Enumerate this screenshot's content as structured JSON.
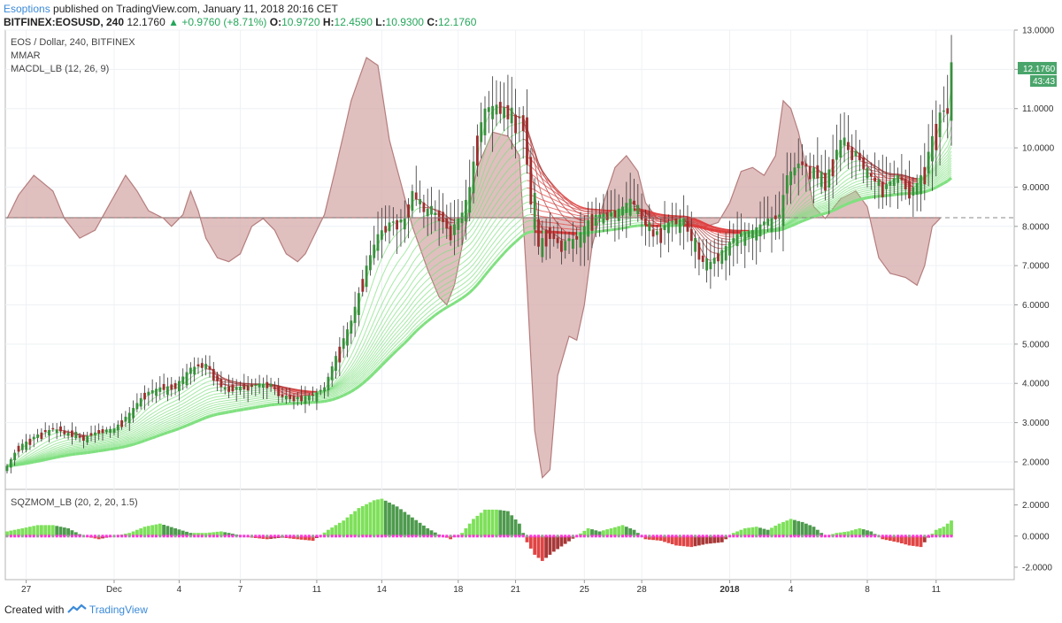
{
  "header": {
    "author": "Esoptions",
    "published": "published on TradingView.com, January 11, 2018 20:16 CET",
    "symbol": "BITFINEX:EOSUSD, 240",
    "last": "12.1760",
    "change": "+0.9760 (+8.71%)",
    "o_label": "O:",
    "o_value": "10.9720",
    "h_label": "H:",
    "h_value": "12.4590",
    "l_label": "L:",
    "l_value": "10.9300",
    "c_label": "C:",
    "c_value": "12.1760"
  },
  "legend": {
    "line1": "EOS / Dollar, 240, BITFINEX",
    "line2": "MMAR",
    "line3": "MACDL_LB (12, 26, 9)",
    "sub": "SQZMOM_LB (20, 2, 20, 1.5)"
  },
  "price_badge": {
    "price": "12.1760",
    "countdown": "43:43"
  },
  "footer": {
    "created": "Created with",
    "brand": "TradingView"
  },
  "colors": {
    "up": "#3a8f3e",
    "down": "#9b2f2f",
    "ribbon_green": "#7fe07f",
    "ribbon_red": "#e03c3c",
    "macd_fill": "#d5a9a9",
    "macd_line": "#b57d7d",
    "sqz_up_strong": "#7ee05a",
    "sqz_up_weak": "#4e9a4e",
    "sqz_down_strong": "#e04545",
    "sqz_down_weak": "#a83838",
    "zero_dots": "#ff33dd",
    "badge": "#4aa56b"
  },
  "chart_data": {
    "type": "line",
    "price_axis": {
      "ylim": [
        1.3,
        13.0
      ],
      "ticks": [
        "13.0000",
        "12.0000",
        "11.0000",
        "10.0000",
        "9.0000",
        "8.0000",
        "7.0000",
        "6.0000",
        "5.0000",
        "4.0000",
        "3.0000",
        "2.0000"
      ]
    },
    "osc_axis": {
      "ylim": [
        -2.8,
        3.0
      ],
      "ticks": [
        "2.0000",
        "0.0000",
        "-2.0000"
      ]
    },
    "x_ticks": [
      "27",
      "Dec",
      "4",
      "7",
      "11",
      "14",
      "18",
      "21",
      "25",
      "28",
      "2018",
      "4",
      "8",
      "11"
    ],
    "x_tick_index": [
      5,
      28,
      45,
      61,
      81,
      98,
      118,
      133,
      151,
      166,
      189,
      205,
      225,
      243
    ],
    "reference_level": 8.22,
    "price_anchors": [
      [
        0,
        1.9
      ],
      [
        3,
        2.4
      ],
      [
        8,
        2.7
      ],
      [
        12,
        2.85
      ],
      [
        16,
        2.75
      ],
      [
        20,
        2.6
      ],
      [
        24,
        2.8
      ],
      [
        28,
        2.85
      ],
      [
        32,
        3.25
      ],
      [
        36,
        3.75
      ],
      [
        40,
        3.9
      ],
      [
        44,
        3.95
      ],
      [
        48,
        4.4
      ],
      [
        52,
        4.5
      ],
      [
        56,
        3.9
      ],
      [
        60,
        3.9
      ],
      [
        64,
        3.95
      ],
      [
        68,
        4.0
      ],
      [
        72,
        3.7
      ],
      [
        76,
        3.65
      ],
      [
        80,
        3.7
      ],
      [
        83,
        3.9
      ],
      [
        86,
        4.7
      ],
      [
        90,
        5.6
      ],
      [
        94,
        7.0
      ],
      [
        97,
        7.8
      ],
      [
        100,
        8.1
      ],
      [
        104,
        8.2
      ],
      [
        106,
        8.9
      ],
      [
        109,
        8.5
      ],
      [
        113,
        8.3
      ],
      [
        116,
        7.9
      ],
      [
        119,
        8.35
      ],
      [
        121,
        9.0
      ],
      [
        123,
        10.3
      ],
      [
        125,
        11.0
      ],
      [
        128,
        11.1
      ],
      [
        131,
        11.0
      ],
      [
        133,
        10.7
      ],
      [
        135,
        10.8
      ],
      [
        137,
        8.8
      ],
      [
        139,
        7.5
      ],
      [
        141,
        7.9
      ],
      [
        145,
        7.6
      ],
      [
        149,
        7.7
      ],
      [
        153,
        8.3
      ],
      [
        157,
        8.3
      ],
      [
        161,
        8.5
      ],
      [
        163,
        8.7
      ],
      [
        165,
        8.4
      ],
      [
        169,
        7.8
      ],
      [
        173,
        8.1
      ],
      [
        177,
        8.2
      ],
      [
        181,
        7.3
      ],
      [
        183,
        7.0
      ],
      [
        187,
        7.4
      ],
      [
        191,
        7.8
      ],
      [
        195,
        7.9
      ],
      [
        199,
        8.2
      ],
      [
        202,
        8.3
      ],
      [
        204,
        9.3
      ],
      [
        207,
        9.6
      ],
      [
        211,
        9.5
      ],
      [
        214,
        9.2
      ],
      [
        218,
        10.2
      ],
      [
        221,
        10.0
      ],
      [
        225,
        9.4
      ],
      [
        229,
        9.0
      ],
      [
        233,
        9.3
      ],
      [
        237,
        8.9
      ],
      [
        240,
        9.5
      ],
      [
        242,
        10.3
      ],
      [
        244,
        10.9
      ],
      [
        246,
        11.0
      ],
      [
        247,
        12.18
      ]
    ],
    "macd_anchors": [
      [
        0,
        8.2
      ],
      [
        3,
        8.8
      ],
      [
        7,
        9.3
      ],
      [
        12,
        8.9
      ],
      [
        15,
        8.2
      ],
      [
        19,
        7.7
      ],
      [
        23,
        7.9
      ],
      [
        27,
        8.6
      ],
      [
        31,
        9.3
      ],
      [
        34,
        8.9
      ],
      [
        37,
        8.4
      ],
      [
        41,
        8.2
      ],
      [
        43,
        8.0
      ],
      [
        46,
        8.3
      ],
      [
        48,
        8.9
      ],
      [
        50,
        8.4
      ],
      [
        52,
        7.7
      ],
      [
        55,
        7.2
      ],
      [
        58,
        7.1
      ],
      [
        61,
        7.3
      ],
      [
        64,
        8.0
      ],
      [
        67,
        8.2
      ],
      [
        70,
        7.9
      ],
      [
        73,
        7.3
      ],
      [
        76,
        7.1
      ],
      [
        78,
        7.3
      ],
      [
        81,
        7.9
      ],
      [
        83,
        8.3
      ],
      [
        86,
        9.5
      ],
      [
        90,
        11.2
      ],
      [
        94,
        12.3
      ],
      [
        97,
        12.1
      ],
      [
        100,
        10.2
      ],
      [
        103,
        9.1
      ],
      [
        106,
        8.0
      ],
      [
        110,
        6.9
      ],
      [
        113,
        6.2
      ],
      [
        115,
        6.0
      ],
      [
        117,
        6.5
      ],
      [
        120,
        8.0
      ],
      [
        123,
        9.5
      ],
      [
        127,
        10.4
      ],
      [
        131,
        10.3
      ],
      [
        134,
        9.8
      ],
      [
        136,
        6.5
      ],
      [
        138,
        2.8
      ],
      [
        140,
        1.6
      ],
      [
        142,
        1.8
      ],
      [
        144,
        4.2
      ],
      [
        147,
        5.2
      ],
      [
        149,
        5.1
      ],
      [
        151,
        6.0
      ],
      [
        153,
        7.5
      ],
      [
        156,
        8.6
      ],
      [
        159,
        9.5
      ],
      [
        162,
        9.8
      ],
      [
        165,
        9.4
      ],
      [
        167,
        8.6
      ],
      [
        170,
        8.2
      ],
      [
        173,
        8.1
      ],
      [
        177,
        8.0
      ],
      [
        180,
        8.0
      ],
      [
        183,
        8.0
      ],
      [
        186,
        8.1
      ],
      [
        189,
        8.6
      ],
      [
        192,
        9.4
      ],
      [
        195,
        9.5
      ],
      [
        198,
        9.3
      ],
      [
        201,
        9.8
      ],
      [
        203,
        11.2
      ],
      [
        205,
        11.0
      ],
      [
        207,
        10.4
      ],
      [
        209,
        9.5
      ],
      [
        211,
        8.5
      ],
      [
        214,
        8.2
      ],
      [
        218,
        8.7
      ],
      [
        222,
        8.9
      ],
      [
        225,
        8.5
      ],
      [
        228,
        7.2
      ],
      [
        231,
        6.8
      ],
      [
        235,
        6.7
      ],
      [
        238,
        6.5
      ],
      [
        240,
        7.0
      ],
      [
        242,
        8.0
      ],
      [
        244,
        8.2
      ]
    ],
    "sqz_anchors": [
      [
        0,
        0.3
      ],
      [
        4,
        0.5
      ],
      [
        8,
        0.7
      ],
      [
        12,
        0.7
      ],
      [
        16,
        0.5
      ],
      [
        20,
        0.0
      ],
      [
        24,
        -0.2
      ],
      [
        28,
        0.0
      ],
      [
        32,
        0.2
      ],
      [
        36,
        0.6
      ],
      [
        40,
        0.8
      ],
      [
        44,
        0.5
      ],
      [
        48,
        0.2
      ],
      [
        52,
        0.2
      ],
      [
        56,
        0.3
      ],
      [
        60,
        0.1
      ],
      [
        64,
        -0.1
      ],
      [
        68,
        -0.2
      ],
      [
        72,
        -0.1
      ],
      [
        76,
        -0.2
      ],
      [
        80,
        -0.3
      ],
      [
        84,
        0.4
      ],
      [
        88,
        1.0
      ],
      [
        92,
        1.8
      ],
      [
        96,
        2.3
      ],
      [
        98,
        2.4
      ],
      [
        102,
        1.9
      ],
      [
        106,
        1.2
      ],
      [
        110,
        0.5
      ],
      [
        113,
        0.1
      ],
      [
        116,
        -0.2
      ],
      [
        119,
        0.2
      ],
      [
        122,
        1.1
      ],
      [
        125,
        1.7
      ],
      [
        128,
        1.7
      ],
      [
        131,
        1.6
      ],
      [
        134,
        0.8
      ],
      [
        136,
        -0.4
      ],
      [
        138,
        -1.2
      ],
      [
        140,
        -1.6
      ],
      [
        143,
        -1.0
      ],
      [
        146,
        -0.5
      ],
      [
        149,
        0.0
      ],
      [
        152,
        0.5
      ],
      [
        155,
        0.3
      ],
      [
        158,
        0.5
      ],
      [
        161,
        0.7
      ],
      [
        164,
        0.4
      ],
      [
        167,
        -0.2
      ],
      [
        171,
        -0.3
      ],
      [
        175,
        -0.6
      ],
      [
        179,
        -0.7
      ],
      [
        183,
        -0.5
      ],
      [
        187,
        -0.4
      ],
      [
        190,
        0.2
      ],
      [
        193,
        0.5
      ],
      [
        196,
        0.6
      ],
      [
        199,
        0.4
      ],
      [
        202,
        0.8
      ],
      [
        205,
        1.1
      ],
      [
        208,
        0.9
      ],
      [
        211,
        0.6
      ],
      [
        214,
        0.0
      ],
      [
        217,
        0.2
      ],
      [
        220,
        0.3
      ],
      [
        223,
        0.5
      ],
      [
        226,
        0.3
      ],
      [
        229,
        -0.2
      ],
      [
        233,
        -0.4
      ],
      [
        236,
        -0.6
      ],
      [
        239,
        -0.7
      ],
      [
        241,
        -0.1
      ],
      [
        243,
        0.4
      ],
      [
        245,
        0.6
      ],
      [
        247,
        1.0
      ]
    ]
  }
}
